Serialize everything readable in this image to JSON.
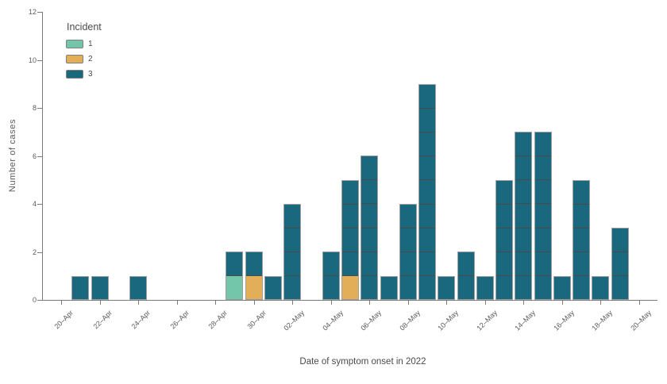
{
  "chart_data": {
    "type": "bar",
    "variant": "stacked-unit-case-epicurve",
    "title": "",
    "xlabel": "Date of symptom onset in 2022",
    "ylabel": "Number of cases",
    "ylim": [
      0,
      12
    ],
    "y_ticks": [
      "0",
      "2",
      "4",
      "6",
      "8",
      "10",
      "12"
    ],
    "grid": false,
    "categories": [
      "20–Apr",
      "21–Apr",
      "22–Apr",
      "23–Apr",
      "24–Apr",
      "25–Apr",
      "26–Apr",
      "27–Apr",
      "28–Apr",
      "29–Apr",
      "30–Apr",
      "01–May",
      "02–May",
      "03–May",
      "04–May",
      "05–May",
      "06–May",
      "07–May",
      "08–May",
      "09–May",
      "10–May",
      "11–May",
      "12–May",
      "13–May",
      "14–May",
      "15–May",
      "16–May",
      "17–May",
      "18–May",
      "19–May",
      "20–May"
    ],
    "x_tick_labels": [
      "20–Apr",
      "22–Apr",
      "24–Apr",
      "26–Apr",
      "28–Apr",
      "30–Apr",
      "02–May",
      "04–May",
      "06–May",
      "08–May",
      "10–May",
      "12–May",
      "14–May",
      "16–May",
      "18–May",
      "20–May"
    ],
    "legend": {
      "title": "Incident",
      "position": "top-left",
      "entries": [
        {
          "label": "1",
          "color": "#73C6A9"
        },
        {
          "label": "2",
          "color": "#E2AE57"
        },
        {
          "label": "3",
          "color": "#1A687E"
        }
      ]
    },
    "stack_order_bottom_to_top": [
      "1",
      "2",
      "3"
    ],
    "series": [
      {
        "name": "1",
        "color": "#73C6A9",
        "values": [
          0,
          0,
          0,
          0,
          0,
          0,
          0,
          0,
          0,
          1,
          0,
          0,
          0,
          0,
          0,
          0,
          0,
          0,
          0,
          0,
          0,
          0,
          0,
          0,
          0,
          0,
          0,
          0,
          0,
          0,
          0
        ]
      },
      {
        "name": "2",
        "color": "#E2AE57",
        "values": [
          0,
          0,
          0,
          0,
          0,
          0,
          0,
          0,
          0,
          0,
          1,
          0,
          0,
          0,
          0,
          1,
          0,
          0,
          0,
          0,
          0,
          0,
          0,
          0,
          0,
          0,
          0,
          0,
          0,
          0,
          0
        ]
      },
      {
        "name": "3",
        "color": "#1A687E",
        "values": [
          0,
          1,
          1,
          0,
          1,
          0,
          0,
          0,
          0,
          1,
          1,
          1,
          4,
          0,
          2,
          4,
          6,
          1,
          4,
          9,
          1,
          2,
          1,
          5,
          7,
          7,
          1,
          5,
          1,
          3,
          0
        ]
      }
    ],
    "colors": {
      "bar_outline": "#A0A0A0",
      "case_divider": "#4A4A4A",
      "axis": "#7A7A7A",
      "tick_text": "#5A5A5A",
      "title_text": "#4A4A4A",
      "background": "#FFFFFF"
    }
  }
}
